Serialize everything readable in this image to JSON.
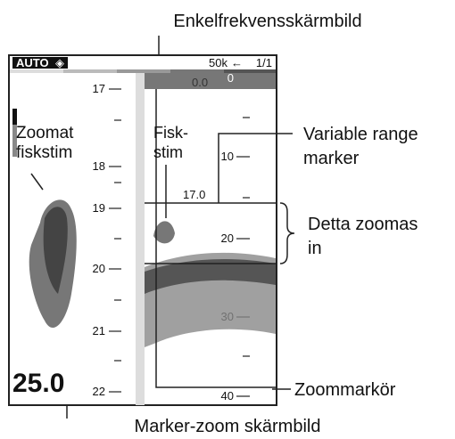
{
  "title": "Enkelfrekvensskärmbild",
  "screen": {
    "header": {
      "mode": "AUTO",
      "frequency": "50k",
      "page": "1/1"
    },
    "zoom_scale": [
      "17",
      "18",
      "19",
      "20",
      "21",
      "22"
    ],
    "range_scale": [
      "0",
      "10",
      "20",
      "30",
      "40"
    ],
    "top_readout": "0.0",
    "marker_readout": "17.0",
    "zoom_depth": "25.0",
    "zoomed_fish_label": [
      "Zoomat",
      "fiskstim"
    ],
    "fish_label": [
      "Fisk-",
      "stim"
    ]
  },
  "callouts": {
    "variable_range_marker": [
      "Variable range",
      "marker"
    ],
    "zoomed_in": [
      "Detta zoomas",
      "in"
    ],
    "zoom_marker": "Zoommarkör",
    "marker_zoom_display": "Marker-zoom skärmbild"
  }
}
